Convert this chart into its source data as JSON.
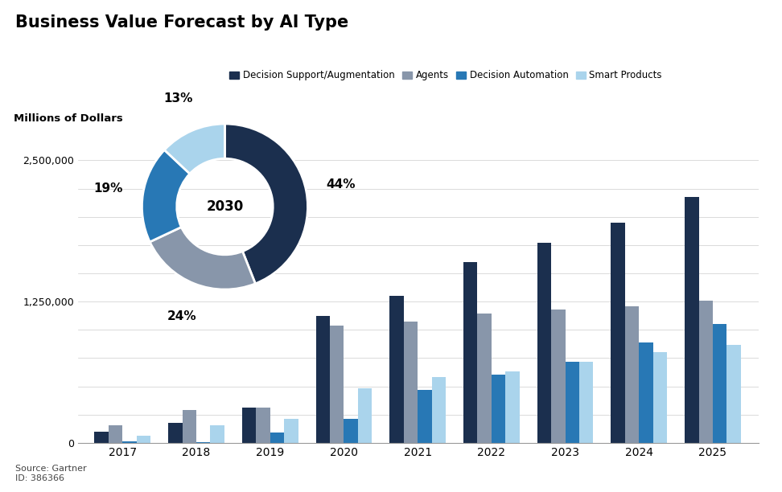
{
  "title": "Business Value Forecast by AI Type",
  "ylabel": "Millions of Dollars",
  "source": "Source: Gartner\nID: 386366",
  "years": [
    2017,
    2018,
    2019,
    2020,
    2021,
    2022,
    2023,
    2024,
    2025
  ],
  "series": {
    "Decision Support/Augmentation": [
      100000,
      175000,
      310000,
      1125000,
      1300000,
      1600000,
      1770000,
      1950000,
      2175000
    ],
    "Agents": [
      155000,
      290000,
      310000,
      1040000,
      1070000,
      1145000,
      1180000,
      1210000,
      1260000
    ],
    "Decision Automation": [
      10000,
      8000,
      90000,
      215000,
      470000,
      600000,
      720000,
      885000,
      1055000
    ],
    "Smart Products": [
      65000,
      155000,
      210000,
      480000,
      580000,
      635000,
      715000,
      800000,
      865000
    ]
  },
  "colors": {
    "Decision Support/Augmentation": "#1b2f4e",
    "Agents": "#8896aa",
    "Decision Automation": "#2878b5",
    "Smart Products": "#aad4ec"
  },
  "pie_values": [
    44,
    24,
    19,
    13
  ],
  "pie_labels": [
    "44%",
    "24%",
    "19%",
    "13%"
  ],
  "pie_colors": [
    "#1b2f4e",
    "#8896aa",
    "#2878b5",
    "#aad4ec"
  ],
  "pie_center_text": "2030",
  "ylim": [
    0,
    2700000
  ],
  "yticks": [
    0,
    1250000,
    2500000
  ],
  "ytick_labels": [
    "0",
    "1,250,000",
    "2,500,000"
  ],
  "background_color": "#ffffff",
  "bar_width": 0.19,
  "legend_entries": [
    "Decision Support/Augmentation",
    "Agents",
    "Decision Automation",
    "Smart Products"
  ]
}
